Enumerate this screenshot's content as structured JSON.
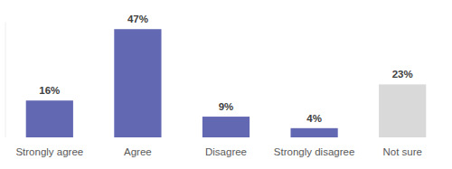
{
  "chart_data": {
    "type": "bar",
    "categories": [
      "Strongly agree",
      "Agree",
      "Disagree",
      "Strongly disagree",
      "Not sure"
    ],
    "values": [
      16,
      47,
      9,
      4,
      23
    ],
    "value_labels": [
      "16%",
      "47%",
      "9%",
      "4%",
      "23%"
    ],
    "colors": [
      "#6368b3",
      "#6368b3",
      "#6368b3",
      "#6368b3",
      "#d9d9d9"
    ],
    "ylim": [
      0,
      50
    ],
    "data_labels": true,
    "tick_labels": "x",
    "grid": false
  }
}
